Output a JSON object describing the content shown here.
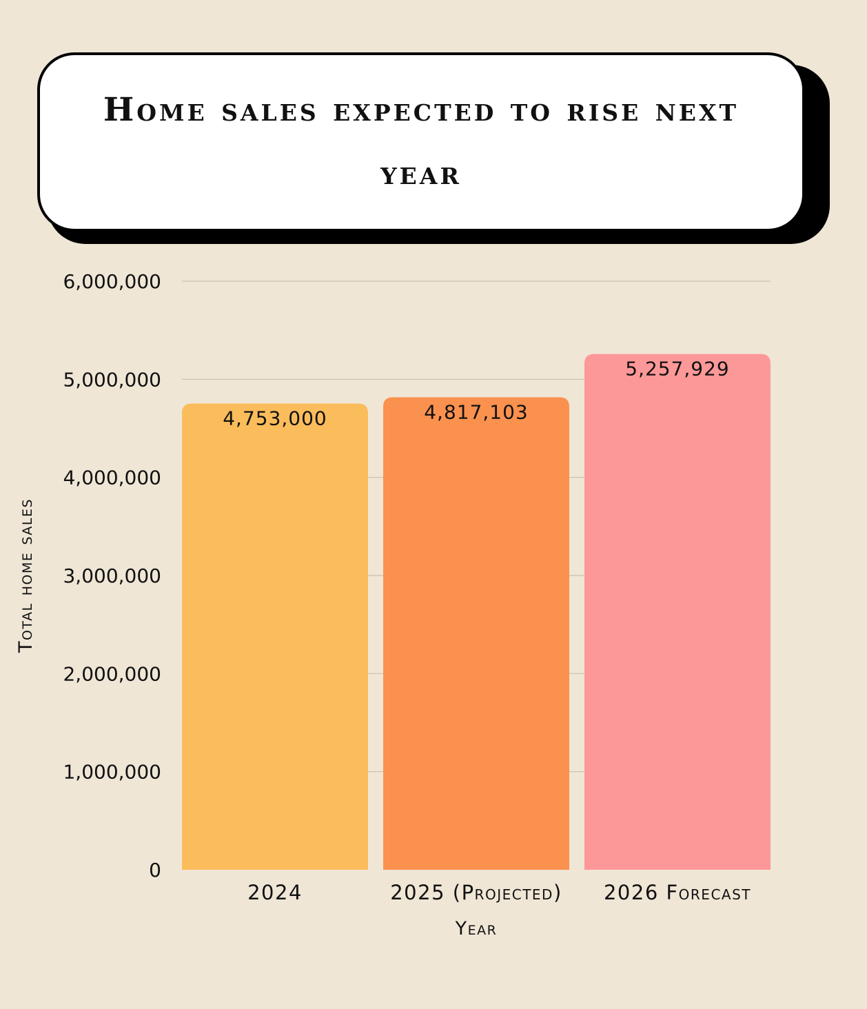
{
  "chart_data": {
    "type": "bar",
    "title": "Home sales expected to rise next year",
    "categories": [
      "2024",
      "2025 (Projected)",
      "2026 Forecast"
    ],
    "values": [
      4753000,
      4817103,
      5257929
    ],
    "data_labels": [
      "4,753,000",
      "4,817,103",
      "5,257,929"
    ],
    "xlabel": "Year",
    "ylabel": "Total home sales",
    "ylim": [
      0,
      6000000
    ],
    "yticks": [
      0,
      1000000,
      2000000,
      3000000,
      4000000,
      5000000,
      6000000
    ],
    "ytick_labels": [
      "0",
      "1,000,000",
      "2,000,000",
      "3,000,000",
      "4,000,000",
      "5,000,000",
      "6,000,000"
    ],
    "colors": [
      "#fbbc5c",
      "#fb914e",
      "#fd9898"
    ],
    "grid": true,
    "legend": "none"
  }
}
